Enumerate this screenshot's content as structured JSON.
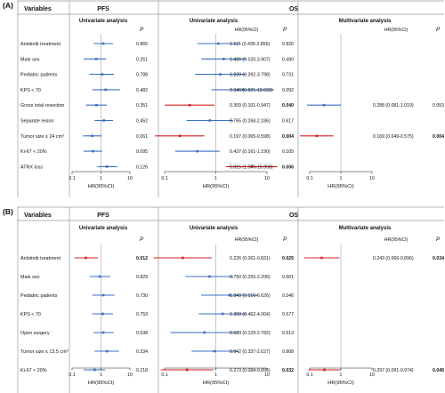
{
  "colors": {
    "blue": "#3a6fc4",
    "red": "#d42020",
    "separator": "#9a9a9a",
    "refline": "#b8b8b8",
    "text": "#111111"
  },
  "panels": [
    {
      "label": "(A)",
      "header": {
        "variables": "Variables",
        "pfs": "PFS",
        "os": "OS"
      },
      "sub": {
        "pfs_uni": "Univariate analysis",
        "os_uni": "Univariate analysis",
        "os_multi": "Multivariate analysis"
      },
      "col_heads": {
        "p1": "P",
        "hr_uni": "HR(95%CI)",
        "p2": "P",
        "hr_multi": "HR(95%CI)",
        "p3": "P"
      },
      "axis": {
        "ticks": [
          "0.1",
          "1",
          "10"
        ],
        "xlabel": "HR(95%CI)"
      },
      "rows": [
        {
          "var": "Anlotinib treatment",
          "pfs": {
            "hr": 1.2,
            "lo": 0.55,
            "hi": 2.6,
            "color": "blue"
          },
          "pfs_p": "0.865",
          "pfs_p_bold": false,
          "os": {
            "hr": 1.115,
            "lo": 0.436,
            "hi": 2.856,
            "color": "blue"
          },
          "os_text": "1.115 (0.436-2.856)",
          "os_p": "0.820",
          "os_p_bold": false
        },
        {
          "var": "Male sex",
          "pfs": {
            "hr": 0.68,
            "lo": 0.25,
            "hi": 1.5,
            "color": "blue"
          },
          "pfs_p": "0.251",
          "pfs_p_bold": false,
          "os": {
            "hr": 1.426,
            "lo": 0.52,
            "hi": 3.907,
            "color": "blue"
          },
          "os_text": "1.426 (0.520-3.907)",
          "os_p": "0.490",
          "os_p_bold": false
        },
        {
          "var": "Pediatric patients",
          "pfs": {
            "hr": 1.1,
            "lo": 0.4,
            "hi": 2.8,
            "color": "blue"
          },
          "pfs_p": "0.788",
          "pfs_p_bold": false,
          "os": {
            "hr": 1.22,
            "lo": 0.392,
            "hi": 3.798,
            "color": "blue"
          },
          "os_text": "1.220 (0.392-3.798)",
          "os_p": "0.731",
          "os_p_bold": false
        },
        {
          "var": "KPS < 70",
          "pfs": {
            "hr": 1.45,
            "lo": 0.5,
            "hi": 4.5,
            "color": "blue"
          },
          "pfs_p": "0.482",
          "pfs_p_bold": false,
          "os": {
            "hr": 3.346,
            "lo": 0.821,
            "hi": 13.632,
            "color": "blue"
          },
          "os_text": "3.346 (0.821-13.632)",
          "os_p": "0.092",
          "os_p_bold": false
        },
        {
          "var": "Gross total resection",
          "pfs": {
            "hr": 0.7,
            "lo": 0.3,
            "hi": 1.6,
            "color": "blue"
          },
          "pfs_p": "0.351",
          "pfs_p_bold": false,
          "os": {
            "hr": 0.309,
            "lo": 0.101,
            "hi": 0.947,
            "color": "red"
          },
          "os_text": "0.309 (0.101-0.947)",
          "os_p": "0.040",
          "os_p_bold": true,
          "multi": {
            "hr": 0.288,
            "lo": 0.081,
            "hi": 1.019,
            "color": "blue"
          },
          "multi_text": "0.288 (0.081-1.019)",
          "multi_p": "0.053",
          "multi_p_bold": false
        },
        {
          "var": "Separate lesion",
          "pfs": {
            "hr": 1.25,
            "lo": 0.6,
            "hi": 2.6,
            "color": "blue"
          },
          "pfs_p": "0.452",
          "pfs_p_bold": false,
          "os": {
            "hr": 0.765,
            "lo": 0.268,
            "hi": 2.186,
            "color": "blue"
          },
          "os_text": "0.765 (0.268-2.186)",
          "os_p": "0.617",
          "os_p_bold": false
        },
        {
          "var": "Tumor size ≤ 24 cm³",
          "pfs": {
            "hr": 0.5,
            "lo": 0.24,
            "hi": 1.05,
            "color": "blue"
          },
          "pfs_p": "0.061",
          "pfs_p_bold": false,
          "os": {
            "hr": 0.197,
            "lo": 0.065,
            "hi": 0.598,
            "color": "red"
          },
          "os_text": "0.197 (0.065-0.598)",
          "os_p": "0.004",
          "os_p_bold": true,
          "multi": {
            "hr": 0.169,
            "lo": 0.049,
            "hi": 0.575,
            "color": "red"
          },
          "multi_text": "0.169 (0.049-0.575)",
          "multi_p": "0.004",
          "multi_p_bold": true
        },
        {
          "var": "Ki-67 < 20%",
          "pfs": {
            "hr": 0.52,
            "lo": 0.25,
            "hi": 1.1,
            "color": "blue"
          },
          "pfs_p": "0.095",
          "pfs_p_bold": false,
          "os": {
            "hr": 0.437,
            "lo": 0.161,
            "hi": 1.19,
            "color": "blue"
          },
          "os_text": "0.437 (0.161-1.190)",
          "os_p": "0.105",
          "os_p_bold": false
        },
        {
          "var": "ATRX loss",
          "pfs": {
            "hr": 1.6,
            "lo": 0.75,
            "hi": 3.6,
            "color": "blue"
          },
          "pfs_p": "0.126",
          "pfs_p_bold": false,
          "os": {
            "hr": 5.015,
            "lo": 1.576,
            "hi": 15.958,
            "color": "red"
          },
          "os_text": "5.015 (1.576-15.958)",
          "os_p": "0.006",
          "os_p_bold": true
        }
      ]
    },
    {
      "label": "(B)",
      "header": {
        "variables": "Variables",
        "pfs": "PFS",
        "os": "OS"
      },
      "sub": {
        "pfs_uni": "Univariate analysis",
        "os_uni": "Univariate analysis",
        "os_multi": "Multivariate analysis"
      },
      "col_heads": {
        "p1": "P",
        "hr_uni": "HR(95%CI)",
        "p2": "P",
        "hr_multi": "HR(95%CI)",
        "p3": "P"
      },
      "axis": {
        "ticks": [
          "0.1",
          "1",
          "10"
        ],
        "xlabel": "HR(95%CI)"
      },
      "rows": [
        {
          "var": "Anlotinib treatment",
          "pfs": {
            "hr": 0.3,
            "lo": 0.12,
            "hi": 0.78,
            "color": "red"
          },
          "pfs_p": "0.012",
          "pfs_p_bold": true,
          "os": {
            "hr": 0.226,
            "lo": 0.061,
            "hi": 0.831,
            "color": "red"
          },
          "os_text": "0.226 (0.061-0.831)",
          "os_p": "0.025",
          "os_p_bold": true,
          "multi": {
            "hr": 0.243,
            "lo": 0.066,
            "hi": 0.896,
            "color": "red"
          },
          "multi_text": "0.243 (0.066-0.896)",
          "multi_p": "0.034",
          "multi_p_bold": true
        },
        {
          "var": "Male sex",
          "pfs": {
            "hr": 0.9,
            "lo": 0.4,
            "hi": 2.1,
            "color": "blue"
          },
          "pfs_p": "0.829",
          "pfs_p_bold": false,
          "os": {
            "hr": 0.75,
            "lo": 0.255,
            "hi": 2.206,
            "color": "blue"
          },
          "os_text": "0.750 (0.255-2.206)",
          "os_p": "0.601",
          "os_p_bold": false
        },
        {
          "var": "Pediatric patients",
          "pfs": {
            "hr": 1.2,
            "lo": 0.5,
            "hi": 2.9,
            "color": "blue"
          },
          "pfs_p": "0.730",
          "pfs_p_bold": false,
          "os": {
            "hr": 1.849,
            "lo": 0.516,
            "hi": 6.626,
            "color": "blue"
          },
          "os_text": "1.849 (0.516-6.626)",
          "os_p": "0.346",
          "os_p_bold": false
        },
        {
          "var": "KPS < 70",
          "pfs": {
            "hr": 1.15,
            "lo": 0.5,
            "hi": 2.6,
            "color": "blue"
          },
          "pfs_p": "0.753",
          "pfs_p_bold": false,
          "os": {
            "hr": 1.36,
            "lo": 0.462,
            "hi": 4.004,
            "color": "blue"
          },
          "os_text": "1.360 (0.462-4.004)",
          "os_p": "0.577",
          "os_p_bold": false
        },
        {
          "var": "Open surgery",
          "pfs": {
            "hr": 1.2,
            "lo": 0.55,
            "hi": 2.7,
            "color": "blue"
          },
          "pfs_p": "0.638",
          "pfs_p_bold": false,
          "os": {
            "hr": 0.599,
            "lo": 0.129,
            "hi": 2.782,
            "color": "blue"
          },
          "os_text": "0.599 (0.129-2.782)",
          "os_p": "0.513",
          "os_p_bold": false
        },
        {
          "var": "Tumor size ≤ 13.5 cm³",
          "pfs": {
            "hr": 1.6,
            "lo": 0.6,
            "hi": 4.2,
            "color": "blue"
          },
          "pfs_p": "0.334",
          "pfs_p_bold": false,
          "os": {
            "hr": 0.942,
            "lo": 0.337,
            "hi": 2.627,
            "color": "blue"
          },
          "os_text": "0.942 (0.337-2.627)",
          "os_p": "0.908",
          "os_p_bold": false
        },
        {
          "var": "Ki-67 < 20%",
          "pfs": {
            "hr": 0.6,
            "lo": 0.25,
            "hi": 1.4,
            "color": "blue"
          },
          "pfs_p": "0.218",
          "pfs_p_bold": false,
          "os": {
            "hr": 0.273,
            "lo": 0.084,
            "hi": 0.895,
            "color": "red"
          },
          "os_text": "0.273 (0.084-0.895)",
          "os_p": "0.032",
          "os_p_bold": true,
          "multi": {
            "hr": 0.297,
            "lo": 0.091,
            "hi": 0.974,
            "color": "red"
          },
          "multi_text": "0.297 (0.091-0.974)",
          "multi_p": "0.045",
          "multi_p_bold": true
        }
      ]
    }
  ],
  "chart_data": [
    {
      "type": "forest",
      "panel": "(A)",
      "x_scale": "log",
      "xlim": [
        0.1,
        10
      ],
      "xlabel": "HR(95%CI)",
      "reference_line": 1,
      "variables": [
        "Anlotinib treatment",
        "Male sex",
        "Pediatric patients",
        "KPS < 70",
        "Gross total resection",
        "Separate lesion",
        "Tumor size ≤ 24 cm³",
        "Ki-67 < 20%",
        "ATRX loss"
      ],
      "series": [
        {
          "name": "PFS",
          "hr": [
            1.2,
            0.68,
            1.1,
            1.45,
            0.7,
            1.25,
            0.5,
            0.52,
            1.6
          ],
          "p": [
            "0.865",
            "0.251",
            "0.788",
            "0.482",
            "0.351",
            "0.452",
            "0.061",
            "0.095",
            "0.126"
          ]
        },
        {
          "name": "OS",
          "hr": [
            1.115,
            1.426,
            1.22,
            3.346,
            0.309,
            0.765,
            0.197,
            0.437,
            5.015
          ],
          "lo": [
            0.436,
            0.52,
            0.392,
            0.821,
            0.101,
            0.268,
            0.065,
            0.161,
            1.576
          ],
          "hi": [
            2.856,
            3.907,
            3.798,
            13.632,
            0.947,
            2.186,
            0.598,
            1.19,
            15.958
          ],
          "p": [
            "0.820",
            "0.490",
            "0.731",
            "0.092",
            "0.040",
            "0.617",
            "0.004",
            "0.105",
            "0.006"
          ]
        },
        {
          "name": "OS",
          "hr": [
            null,
            null,
            null,
            null,
            0.288,
            null,
            0.169,
            null,
            null
          ],
          "lo": [
            null,
            null,
            null,
            null,
            0.081,
            null,
            0.049,
            null,
            null
          ],
          "hi": [
            null,
            null,
            null,
            null,
            1.019,
            null,
            0.575,
            null,
            null
          ],
          "p": [
            null,
            null,
            null,
            null,
            "0.053",
            null,
            "0.004",
            null,
            null
          ]
        }
      ]
    },
    {
      "type": "forest",
      "panel": "(B)",
      "x_scale": "log",
      "xlim": [
        0.1,
        10
      ],
      "xlabel": "HR(95%CI)",
      "reference_line": 1,
      "variables": [
        "Anlotinib treatment",
        "Male sex",
        "Pediatric patients",
        "KPS < 70",
        "Open surgery",
        "Tumor size ≤ 13.5 cm³",
        "Ki-67 < 20%"
      ],
      "series": [
        {
          "name": "PFS",
          "hr": [
            0.3,
            0.9,
            1.2,
            1.15,
            1.2,
            1.6,
            0.6
          ],
          "p": [
            "0.012",
            "0.829",
            "0.730",
            "0.753",
            "0.638",
            "0.334",
            "0.218"
          ]
        },
        {
          "name": "OS",
          "hr": [
            0.226,
            0.75,
            1.849,
            1.36,
            0.599,
            0.942,
            0.273
          ],
          "lo": [
            0.061,
            0.255,
            0.516,
            0.462,
            0.129,
            0.337,
            0.084
          ],
          "hi": [
            0.831,
            2.206,
            6.626,
            4.004,
            2.782,
            2.627,
            0.895
          ],
          "p": [
            "0.025",
            "0.601",
            "0.346",
            "0.577",
            "0.513",
            "0.908",
            "0.032"
          ]
        },
        {
          "name": "OS",
          "hr": [
            0.243,
            null,
            null,
            null,
            null,
            null,
            0.297
          ],
          "lo": [
            0.066,
            null,
            null,
            null,
            null,
            null,
            0.091
          ],
          "hi": [
            0.896,
            null,
            null,
            null,
            null,
            null,
            0.974
          ],
          "p": [
            "0.034",
            null,
            null,
            null,
            null,
            null,
            "0.045"
          ]
        }
      ]
    }
  ]
}
